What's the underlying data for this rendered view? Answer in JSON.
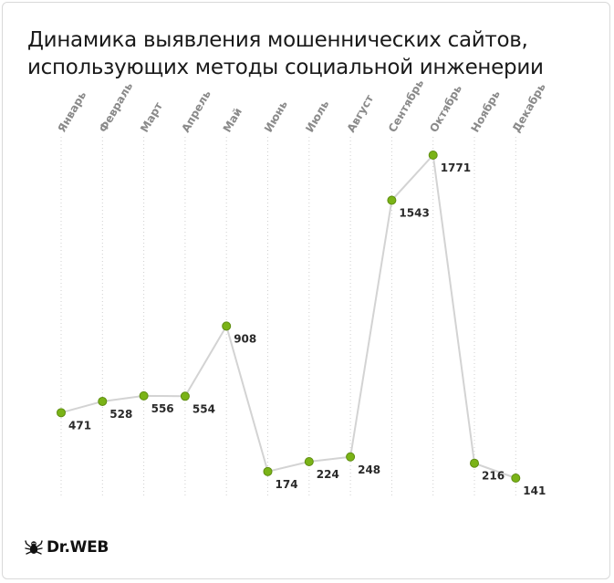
{
  "title_line1": "Динамика выявления мошеннических сайтов,",
  "title_line2": "использующих методы социальной инженерии",
  "logo_text": "Dr.WEB",
  "logo_icon": "spider-icon",
  "colors": {
    "line": "#d3d3d3",
    "point": "#7ab317",
    "point_stroke": "#5e8d10",
    "month_label": "#8a8a8a",
    "value_label": "#2a2a2a"
  },
  "chart_data": {
    "type": "line",
    "title": "Динамика выявления мошеннических сайтов, использующих методы социальной инженерии",
    "categories": [
      "Январь",
      "Февраль",
      "Март",
      "Апрель",
      "Май",
      "Июнь",
      "Июль",
      "Август",
      "Сентябрь",
      "Октябрь",
      "Ноябрь",
      "Декабрь"
    ],
    "values": [
      471,
      528,
      556,
      554,
      908,
      174,
      224,
      248,
      1543,
      1771,
      216,
      141
    ],
    "xlabel": "",
    "ylabel": "",
    "grid": "vertical-dotted",
    "legend": "none"
  }
}
